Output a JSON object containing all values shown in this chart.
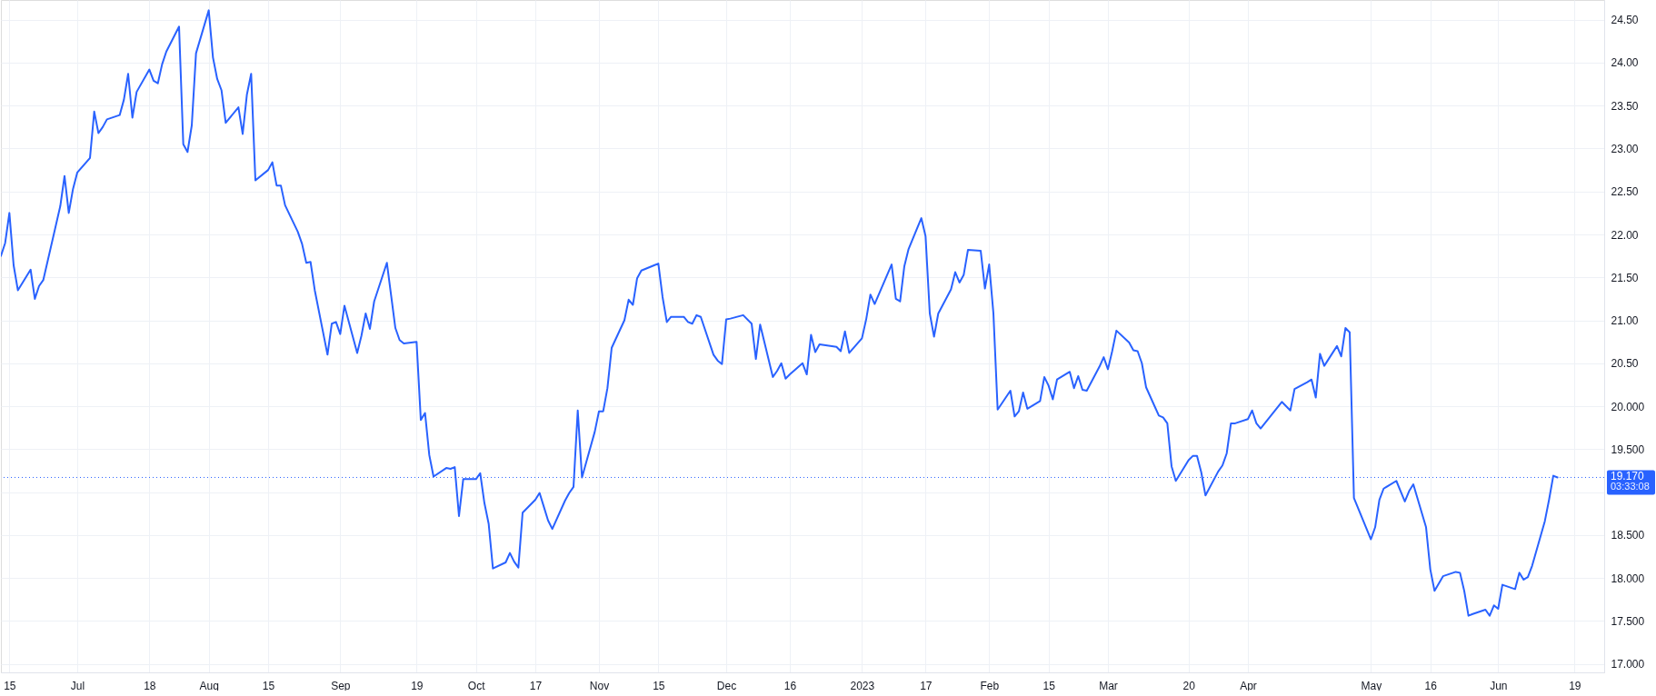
{
  "chart_data": {
    "type": "line",
    "x": [
      "2022-06-13",
      "2022-06-14",
      "2022-06-15",
      "2022-06-16",
      "2022-06-17",
      "2022-06-20",
      "2022-06-21",
      "2022-06-22",
      "2022-06-23",
      "2022-06-27",
      "2022-06-28",
      "2022-06-29",
      "2022-06-30",
      "2022-07-01",
      "2022-07-04",
      "2022-07-05",
      "2022-07-06",
      "2022-07-07",
      "2022-07-08",
      "2022-07-11",
      "2022-07-12",
      "2022-07-13",
      "2022-07-14",
      "2022-07-15",
      "2022-07-18",
      "2022-07-19",
      "2022-07-20",
      "2022-07-21",
      "2022-07-22",
      "2022-07-25",
      "2022-07-26",
      "2022-07-27",
      "2022-07-28",
      "2022-07-29",
      "2022-08-01",
      "2022-08-02",
      "2022-08-03",
      "2022-08-04",
      "2022-08-05",
      "2022-08-08",
      "2022-08-09",
      "2022-08-10",
      "2022-08-11",
      "2022-08-12",
      "2022-08-15",
      "2022-08-16",
      "2022-08-17",
      "2022-08-18",
      "2022-08-19",
      "2022-08-22",
      "2022-08-23",
      "2022-08-24",
      "2022-08-25",
      "2022-08-26",
      "2022-08-29",
      "2022-08-30",
      "2022-08-31",
      "2022-09-01",
      "2022-09-02",
      "2022-09-05",
      "2022-09-06",
      "2022-09-07",
      "2022-09-08",
      "2022-09-09",
      "2022-09-12",
      "2022-09-13",
      "2022-09-14",
      "2022-09-15",
      "2022-09-16",
      "2022-09-19",
      "2022-09-20",
      "2022-09-21",
      "2022-09-22",
      "2022-09-23",
      "2022-09-26",
      "2022-09-27",
      "2022-09-28",
      "2022-09-29",
      "2022-09-30",
      "2022-10-03",
      "2022-10-04",
      "2022-10-05",
      "2022-10-06",
      "2022-10-07",
      "2022-10-10",
      "2022-10-11",
      "2022-10-12",
      "2022-10-13",
      "2022-10-14",
      "2022-10-17",
      "2022-10-18",
      "2022-10-19",
      "2022-10-20",
      "2022-10-21",
      "2022-10-24",
      "2022-10-25",
      "2022-10-26",
      "2022-10-27",
      "2022-10-28",
      "2022-10-31",
      "2022-11-01",
      "2022-11-02",
      "2022-11-03",
      "2022-11-04",
      "2022-11-07",
      "2022-11-08",
      "2022-11-09",
      "2022-11-10",
      "2022-11-11",
      "2022-11-14",
      "2022-11-15",
      "2022-11-16",
      "2022-11-17",
      "2022-11-18",
      "2022-11-21",
      "2022-11-22",
      "2022-11-23",
      "2022-11-24",
      "2022-11-25",
      "2022-11-28",
      "2022-11-29",
      "2022-11-30",
      "2022-12-01",
      "2022-12-02",
      "2022-12-05",
      "2022-12-07",
      "2022-12-08",
      "2022-12-09",
      "2022-12-12",
      "2022-12-13",
      "2022-12-14",
      "2022-12-15",
      "2022-12-16",
      "2022-12-19",
      "2022-12-20",
      "2022-12-21",
      "2022-12-22",
      "2022-12-23",
      "2022-12-27",
      "2022-12-28",
      "2022-12-29",
      "2022-12-30",
      "2023-01-02",
      "2023-01-03",
      "2023-01-04",
      "2023-01-05",
      "2023-01-09",
      "2023-01-10",
      "2023-01-11",
      "2023-01-12",
      "2023-01-13",
      "2023-01-16",
      "2023-01-17",
      "2023-01-18",
      "2023-01-19",
      "2023-01-20",
      "2023-01-23",
      "2023-01-24",
      "2023-01-25",
      "2023-01-26",
      "2023-01-27",
      "2023-01-30",
      "2023-01-31",
      "2023-02-01",
      "2023-02-02",
      "2023-02-03",
      "2023-02-06",
      "2023-02-07",
      "2023-02-08",
      "2023-02-09",
      "2023-02-10",
      "2023-02-13",
      "2023-02-14",
      "2023-02-15",
      "2023-02-16",
      "2023-02-17",
      "2023-02-20",
      "2023-02-21",
      "2023-02-22",
      "2023-02-23",
      "2023-02-24",
      "2023-02-27",
      "2023-02-28",
      "2023-03-01",
      "2023-03-02",
      "2023-03-03",
      "2023-03-06",
      "2023-03-07",
      "2023-03-08",
      "2023-03-09",
      "2023-03-10",
      "2023-03-13",
      "2023-03-14",
      "2023-03-15",
      "2023-03-16",
      "2023-03-17",
      "2023-03-20",
      "2023-03-21",
      "2023-03-22",
      "2023-03-23",
      "2023-03-24",
      "2023-03-27",
      "2023-03-28",
      "2023-03-29",
      "2023-03-30",
      "2023-03-31",
      "2023-04-03",
      "2023-04-04",
      "2023-04-05",
      "2023-04-06",
      "2023-04-11",
      "2023-04-12",
      "2023-04-13",
      "2023-04-14",
      "2023-04-17",
      "2023-04-18",
      "2023-04-19",
      "2023-04-20",
      "2023-04-21",
      "2023-04-24",
      "2023-04-25",
      "2023-04-26",
      "2023-04-27",
      "2023-04-28",
      "2023-05-02",
      "2023-05-03",
      "2023-05-04",
      "2023-05-05",
      "2023-05-08",
      "2023-05-09",
      "2023-05-10",
      "2023-05-11",
      "2023-05-12",
      "2023-05-15",
      "2023-05-16",
      "2023-05-17",
      "2023-05-19",
      "2023-05-22",
      "2023-05-23",
      "2023-05-24",
      "2023-05-25",
      "2023-05-26",
      "2023-05-29",
      "2023-05-30",
      "2023-05-31",
      "2023-06-01",
      "2023-06-02",
      "2023-06-05",
      "2023-06-06",
      "2023-06-07",
      "2023-06-08",
      "2023-06-09",
      "2023-06-12",
      "2023-06-13",
      "2023-06-14",
      "2023-06-15"
    ],
    "series": [
      {
        "color": "#2962ff",
        "values": [
          21.75,
          21.9,
          22.25,
          21.64,
          21.35,
          21.59,
          21.25,
          21.4,
          21.47,
          22.33,
          22.68,
          22.25,
          22.53,
          22.72,
          22.89,
          23.43,
          23.18,
          23.25,
          23.34,
          23.39,
          23.57,
          23.87,
          23.36,
          23.66,
          23.92,
          23.79,
          23.76,
          23.98,
          24.13,
          24.42,
          23.05,
          22.96,
          23.27,
          24.11,
          24.61,
          24.06,
          23.81,
          23.68,
          23.3,
          23.48,
          23.17,
          23.63,
          23.87,
          22.63,
          22.75,
          22.84,
          22.57,
          22.57,
          22.34,
          22.03,
          21.89,
          21.67,
          21.68,
          21.35,
          20.6,
          20.96,
          20.98,
          20.84,
          21.17,
          20.62,
          20.82,
          21.08,
          20.9,
          21.22,
          21.67,
          21.29,
          20.91,
          20.77,
          20.73,
          20.75,
          19.84,
          19.92,
          19.43,
          19.18,
          19.28,
          19.27,
          19.29,
          18.72,
          19.15,
          19.15,
          19.22,
          18.87,
          18.63,
          18.11,
          18.18,
          18.29,
          18.19,
          18.12,
          18.76,
          18.91,
          18.99,
          18.83,
          18.67,
          18.57,
          18.9,
          18.99,
          19.06,
          19.95,
          19.17,
          19.7,
          19.94,
          19.94,
          20.21,
          20.68,
          21.0,
          21.24,
          21.18,
          21.49,
          21.58,
          21.64,
          21.66,
          21.27,
          20.98,
          21.04,
          21.04,
          20.98,
          20.96,
          21.06,
          21.04,
          20.6,
          20.53,
          20.49,
          21.01,
          21.02,
          21.06,
          20.96,
          20.55,
          20.95,
          20.34,
          20.41,
          20.5,
          20.32,
          20.37,
          20.5,
          20.37,
          20.83,
          20.63,
          20.72,
          20.69,
          20.64,
          20.87,
          20.62,
          20.79,
          21.01,
          21.3,
          21.19,
          21.65,
          21.25,
          21.22,
          21.63,
          21.83,
          22.19,
          21.98,
          21.08,
          20.81,
          21.08,
          21.36,
          21.56,
          21.44,
          21.53,
          21.82,
          21.81,
          21.37,
          21.65,
          21.08,
          19.96,
          20.18,
          19.88,
          19.94,
          20.16,
          19.97,
          20.06,
          20.34,
          20.24,
          20.08,
          20.31,
          20.4,
          20.21,
          20.35,
          20.19,
          20.18,
          20.46,
          20.57,
          20.43,
          20.64,
          20.88,
          20.74,
          20.65,
          20.64,
          20.5,
          20.22,
          19.89,
          19.87,
          19.8,
          19.3,
          19.13,
          19.37,
          19.42,
          19.42,
          19.23,
          18.96,
          19.24,
          19.31,
          19.45,
          19.8,
          19.8,
          19.85,
          19.95,
          19.8,
          19.74,
          20.05,
          20.0,
          19.95,
          20.2,
          20.28,
          20.31,
          20.1,
          20.61,
          20.47,
          20.7,
          20.58,
          20.91,
          20.86,
          18.93,
          18.45,
          18.59,
          18.91,
          19.04,
          19.13,
          19.01,
          18.89,
          19.01,
          19.09,
          18.59,
          18.1,
          17.85,
          18.02,
          18.07,
          18.06,
          17.85,
          17.56,
          17.58,
          17.63,
          17.56,
          17.68,
          17.64,
          17.92,
          17.87,
          18.06,
          17.98,
          18.01,
          18.14,
          18.66,
          18.91,
          19.19,
          19.17
        ]
      }
    ],
    "xlim": [
      "2022-06-13",
      "2023-06-26"
    ],
    "xticks": [
      {
        "value": "2022-06-15",
        "label": "15"
      },
      {
        "value": "2022-07-01",
        "label": "Jul"
      },
      {
        "value": "2022-07-18",
        "label": "18"
      },
      {
        "value": "2022-08-01",
        "label": "Aug"
      },
      {
        "value": "2022-08-15",
        "label": "15"
      },
      {
        "value": "2022-09-01",
        "label": "Sep"
      },
      {
        "value": "2022-09-19",
        "label": "19"
      },
      {
        "value": "2022-10-03",
        "label": "Oct"
      },
      {
        "value": "2022-10-17",
        "label": "17"
      },
      {
        "value": "2022-11-01",
        "label": "Nov"
      },
      {
        "value": "2022-11-15",
        "label": "15"
      },
      {
        "value": "2022-12-01",
        "label": "Dec"
      },
      {
        "value": "2022-12-16",
        "label": "16"
      },
      {
        "value": "2023-01-02",
        "label": "2023"
      },
      {
        "value": "2023-01-17",
        "label": "17"
      },
      {
        "value": "2023-02-01",
        "label": "Feb"
      },
      {
        "value": "2023-02-15",
        "label": "15"
      },
      {
        "value": "2023-03-01",
        "label": "Mar"
      },
      {
        "value": "2023-03-20",
        "label": "20"
      },
      {
        "value": "2023-04-03",
        "label": "Apr"
      },
      {
        "value": "2023-05-02",
        "label": "May"
      },
      {
        "value": "2023-05-16",
        "label": "16"
      },
      {
        "value": "2023-06-01",
        "label": "Jun"
      },
      {
        "value": "2023-06-19",
        "label": "19"
      }
    ],
    "ylim": [
      16.9,
      24.73
    ],
    "yticks": [
      {
        "value": 17,
        "label": "17.000"
      },
      {
        "value": 17.5,
        "label": "17.500"
      },
      {
        "value": 18,
        "label": "18.000"
      },
      {
        "value": 18.5,
        "label": "18.500"
      },
      {
        "value": 19,
        "label": null
      },
      {
        "value": 19.5,
        "label": "19.500"
      },
      {
        "value": 20,
        "label": "20.000"
      },
      {
        "value": 20.5,
        "label": "20.50"
      },
      {
        "value": 21,
        "label": "21.00"
      },
      {
        "value": 21.5,
        "label": "21.50"
      },
      {
        "value": 22,
        "label": "22.00"
      },
      {
        "value": 22.5,
        "label": "22.50"
      },
      {
        "value": 23,
        "label": "23.00"
      },
      {
        "value": 23.5,
        "label": "23.50"
      },
      {
        "value": 24,
        "label": "24.00"
      },
      {
        "value": 24.5,
        "label": "24.50"
      }
    ],
    "grid": true,
    "ref_lines": [
      {
        "axis": "y",
        "value": 19.17,
        "label": "19.170",
        "color": "#2962ff",
        "line_style": "dotted"
      }
    ],
    "annotations": [
      "03:33:08"
    ]
  }
}
